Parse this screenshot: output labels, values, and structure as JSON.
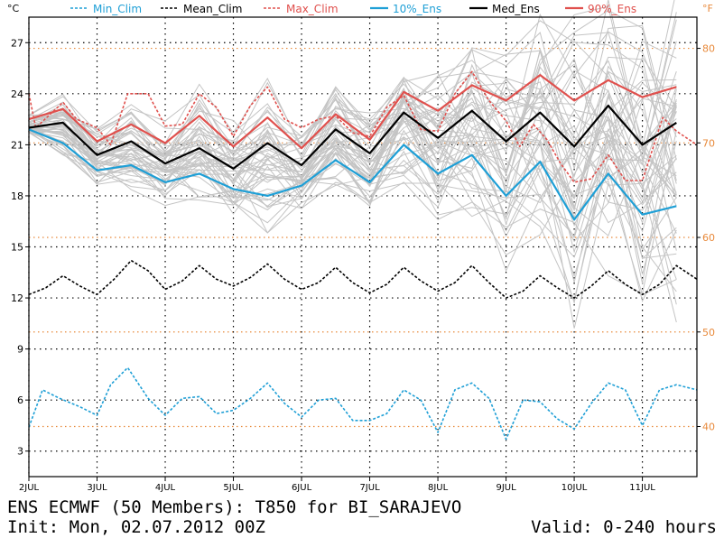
{
  "chart_data": {
    "type": "line",
    "title": "ENS ECMWF (50 Members): T850 for BI_SARAJEVO",
    "init_text": "Init: Mon, 02.07.2012 00Z",
    "valid_text": "Valid: 0-240 hours",
    "y_unit_left": "°C",
    "y_unit_right": "°F",
    "ylim": [
      1.5,
      28.5
    ],
    "y_ticks": [
      3,
      6,
      9,
      12,
      15,
      18,
      21,
      24,
      27
    ],
    "y_ticks_f": [
      40,
      50,
      60,
      70,
      80
    ],
    "xlim": [
      0,
      9.8
    ],
    "x_ticks": [
      {
        "x": 0,
        "label": "2JUL"
      },
      {
        "x": 1,
        "label": "3JUL"
      },
      {
        "x": 2,
        "label": "4JUL"
      },
      {
        "x": 3,
        "label": "5JUL"
      },
      {
        "x": 4,
        "label": "6JUL"
      },
      {
        "x": 5,
        "label": "7JUL"
      },
      {
        "x": 6,
        "label": "8JUL"
      },
      {
        "x": 7,
        "label": "9JUL"
      },
      {
        "x": 8,
        "label": "10JUL"
      },
      {
        "x": 9,
        "label": "11JUL"
      }
    ],
    "grid": true,
    "legend_position": "top",
    "series": [
      {
        "name": "Min_Clim",
        "color": "#1e9fd6",
        "dash": true,
        "x": [
          0,
          0.2,
          0.45,
          0.75,
          1,
          1.2,
          1.45,
          1.75,
          2,
          2.25,
          2.5,
          2.75,
          3,
          3.25,
          3.5,
          3.75,
          4,
          4.25,
          4.5,
          4.75,
          5,
          5.25,
          5.5,
          5.75,
          6,
          6.25,
          6.5,
          6.75,
          7,
          7.25,
          7.5,
          7.75,
          8,
          8.25,
          8.5,
          8.75,
          9,
          9.25,
          9.5,
          9.8
        ],
        "y": [
          4.4,
          6.6,
          6.1,
          5.6,
          5.1,
          6.9,
          7.9,
          6.1,
          5.1,
          6.1,
          6.2,
          5.2,
          5.4,
          6.1,
          7.0,
          5.8,
          5.0,
          6.0,
          6.1,
          4.8,
          4.8,
          5.2,
          6.6,
          6.0,
          4.1,
          6.6,
          7.0,
          6.1,
          3.7,
          6.0,
          5.9,
          4.9,
          4.3,
          5.8,
          7.0,
          6.6,
          4.5,
          6.6,
          6.9,
          6.6
        ]
      },
      {
        "name": "Mean_Clim",
        "color": "#000000",
        "dash": true,
        "x": [
          0,
          0.25,
          0.5,
          0.75,
          1,
          1.25,
          1.5,
          1.75,
          2,
          2.25,
          2.5,
          2.75,
          3,
          3.25,
          3.5,
          3.75,
          4,
          4.25,
          4.5,
          4.75,
          5,
          5.25,
          5.5,
          5.75,
          6,
          6.25,
          6.5,
          6.75,
          7,
          7.25,
          7.5,
          7.75,
          8,
          8.25,
          8.5,
          8.75,
          9,
          9.25,
          9.5,
          9.8
        ],
        "y": [
          12.2,
          12.6,
          13.3,
          12.7,
          12.2,
          13.1,
          14.2,
          13.6,
          12.5,
          13.0,
          13.9,
          13.1,
          12.7,
          13.2,
          14.0,
          13.1,
          12.5,
          12.9,
          13.8,
          12.9,
          12.3,
          12.8,
          13.8,
          13.0,
          12.4,
          12.9,
          13.9,
          12.9,
          12.0,
          12.4,
          13.3,
          12.6,
          12.0,
          12.7,
          13.6,
          12.8,
          12.2,
          12.8,
          13.9,
          13.1
        ]
      },
      {
        "name": "Max_Clim",
        "color": "#e0504d",
        "dash": true,
        "x": [
          0,
          0.1,
          0.5,
          0.7,
          1,
          1.2,
          1.45,
          1.75,
          2,
          2.25,
          2.5,
          2.75,
          3,
          3.25,
          3.5,
          3.75,
          4,
          4.25,
          4.5,
          4.75,
          5,
          5.25,
          5.5,
          5.75,
          6,
          6.25,
          6.5,
          6.75,
          7,
          7.2,
          7.4,
          7.6,
          7.8,
          8,
          8.25,
          8.5,
          8.75,
          9,
          9.3,
          9.5,
          9.8
        ],
        "y": [
          24.0,
          22.0,
          23.5,
          22.5,
          22.0,
          21.0,
          24.0,
          24.0,
          22.1,
          22.2,
          24.0,
          23.2,
          21.5,
          23.3,
          24.4,
          22.5,
          22.0,
          22.5,
          22.7,
          21.7,
          21.5,
          23.2,
          23.9,
          21.9,
          21.8,
          24.0,
          25.3,
          23.6,
          22.4,
          20.9,
          22.2,
          21.3,
          19.9,
          18.8,
          19.0,
          20.4,
          18.9,
          18.9,
          22.6,
          21.8,
          21.0
        ]
      },
      {
        "name": "10%_Ens",
        "color": "#1e9fd6",
        "dash": false,
        "x": [
          0,
          0.5,
          1,
          1.5,
          2,
          2.5,
          3,
          3.5,
          4,
          4.5,
          5,
          5.5,
          6,
          6.5,
          7,
          7.5,
          8,
          8.5,
          9,
          9.5
        ],
        "y": [
          21.9,
          21.1,
          19.5,
          19.8,
          18.8,
          19.3,
          18.4,
          18.0,
          18.6,
          20.1,
          18.8,
          21.0,
          19.3,
          20.4,
          18.0,
          20.0,
          16.6,
          19.3,
          16.9,
          17.4
        ]
      },
      {
        "name": "Med_Ens",
        "color": "#000000",
        "dash": false,
        "x": [
          0,
          0.5,
          1,
          1.5,
          2,
          2.5,
          3,
          3.5,
          4,
          4.5,
          5,
          5.5,
          6,
          6.5,
          7,
          7.5,
          8,
          8.5,
          9,
          9.5
        ],
        "y": [
          22.0,
          22.3,
          20.4,
          21.2,
          19.9,
          20.8,
          19.6,
          21.1,
          19.8,
          21.9,
          20.5,
          22.9,
          21.4,
          23.0,
          21.2,
          22.9,
          20.9,
          23.3,
          21.0,
          22.3
        ]
      },
      {
        "name": "90%_Ens",
        "color": "#e0504d",
        "dash": false,
        "x": [
          0,
          0.5,
          1,
          1.5,
          2,
          2.5,
          3,
          3.5,
          4,
          4.5,
          5,
          5.5,
          6,
          6.5,
          7,
          7.5,
          8,
          8.5,
          9,
          9.5
        ],
        "y": [
          22.5,
          23.1,
          21.2,
          22.2,
          21.1,
          22.7,
          20.9,
          22.6,
          20.8,
          22.8,
          21.3,
          24.1,
          23.0,
          24.5,
          23.6,
          25.1,
          23.6,
          24.8,
          23.8,
          24.4
        ]
      }
    ]
  }
}
